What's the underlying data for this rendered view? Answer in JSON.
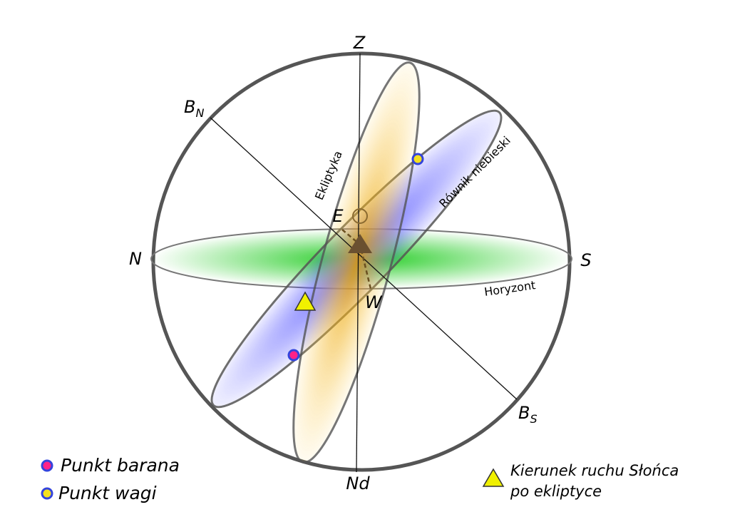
{
  "labels": {
    "zenith": "Z",
    "nadir": "Nd",
    "north": "N",
    "south": "S",
    "east": "E",
    "west": "W",
    "pole_north": {
      "letter": "B",
      "subscript": "N"
    },
    "pole_south": {
      "letter": "B",
      "subscript": "S"
    }
  },
  "circles": {
    "ecliptic": "Ekliptyka",
    "equator": "Równik niebieski",
    "horizon": "Horyzont"
  },
  "legend": {
    "items": [
      "Punkt barana",
      "Punkt wagi"
    ],
    "sun_direction": [
      "Kierunek ruchu Słońca",
      "po ekliptyce"
    ]
  }
}
